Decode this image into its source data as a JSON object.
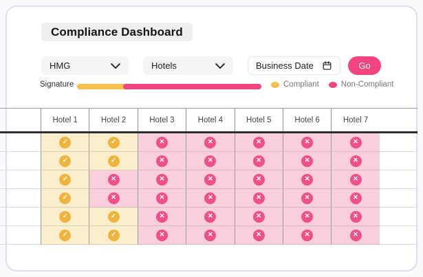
{
  "title": "Compliance Dashboard",
  "filters": {
    "group_select": {
      "value": "HMG"
    },
    "category_select": {
      "value": "Hotels"
    },
    "date_field": {
      "label": "Business Date"
    },
    "go_button_label": "Go"
  },
  "signature": {
    "label": "Signature",
    "compliant_pct": 25,
    "non_compliant_pct": 75
  },
  "legend": {
    "compliant_label": "Compliant",
    "non_compliant_label": "Non-Compliant"
  },
  "colors": {
    "compliant_icon": "#EFB43D",
    "non_compliant_icon": "#F0508A",
    "compliant_cell_bg": "#FAEECD",
    "non_compliant_cell_bg": "#F9CFDC",
    "accent_pink": "#F4447F",
    "accent_yellow": "#F5C148"
  },
  "table": {
    "columns": [
      "Hotel 1",
      "Hotel 2",
      "Hotel 3",
      "Hotel 4",
      "Hotel 5",
      "Hotel 6",
      "Hotel 7"
    ],
    "rows": [
      [
        "compliant",
        "compliant",
        "non-compliant",
        "non-compliant",
        "non-compliant",
        "non-compliant",
        "non-compliant"
      ],
      [
        "compliant",
        "compliant",
        "non-compliant",
        "non-compliant",
        "non-compliant",
        "non-compliant",
        "non-compliant"
      ],
      [
        "compliant",
        "non-compliant",
        "non-compliant",
        "non-compliant",
        "non-compliant",
        "non-compliant",
        "non-compliant"
      ],
      [
        "compliant",
        "non-compliant",
        "non-compliant",
        "non-compliant",
        "non-compliant",
        "non-compliant",
        "non-compliant"
      ],
      [
        "compliant",
        "compliant",
        "non-compliant",
        "non-compliant",
        "non-compliant",
        "non-compliant",
        "non-compliant"
      ],
      [
        "compliant",
        "compliant",
        "non-compliant",
        "non-compliant",
        "non-compliant",
        "non-compliant",
        "non-compliant"
      ]
    ]
  }
}
